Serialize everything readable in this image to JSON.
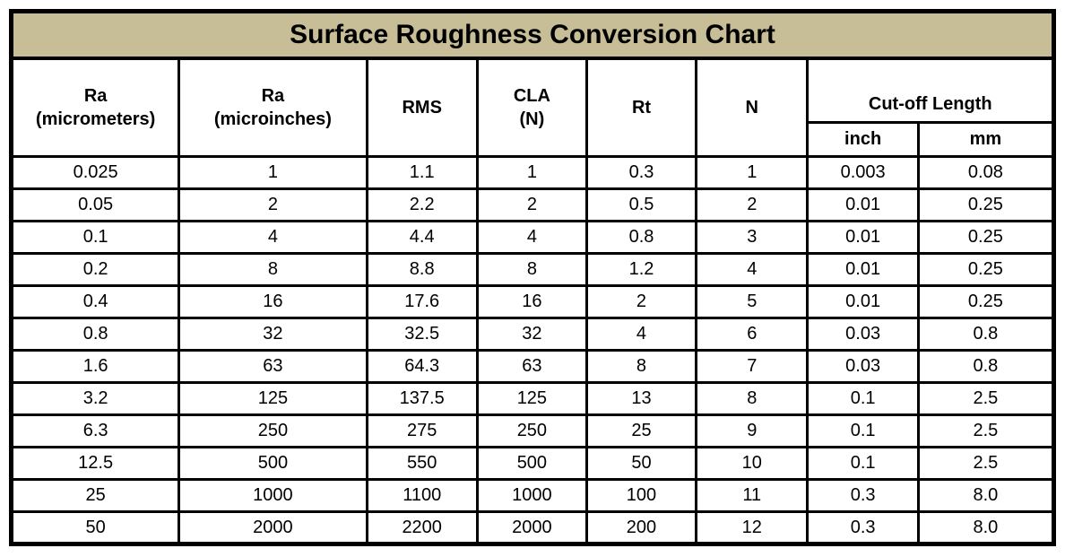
{
  "title": "Surface Roughness Conversion Chart",
  "colors": {
    "title_background": "#c7bd96",
    "border": "#000000",
    "cell_background": "#ffffff",
    "text": "#000000"
  },
  "header": {
    "columns": [
      {
        "id": "ra-micrometers",
        "line1": "Ra",
        "line2": "(micrometers)"
      },
      {
        "id": "ra-microinches",
        "line1": "Ra",
        "line2": "(microinches)"
      },
      {
        "id": "rms",
        "line1": "RMS",
        "line2": ""
      },
      {
        "id": "cla-n",
        "line1": "CLA",
        "line2": "(N)"
      },
      {
        "id": "rt",
        "line1": "Rt",
        "line2": ""
      },
      {
        "id": "n",
        "line1": "N",
        "line2": ""
      }
    ],
    "cutoff_group": {
      "label": "Cut-off Length",
      "sub_columns": [
        "inch",
        "mm"
      ]
    }
  },
  "chart_data": {
    "type": "table",
    "title": "Surface Roughness Conversion Chart",
    "columns": [
      "Ra (micrometers)",
      "Ra (microinches)",
      "RMS",
      "CLA (N)",
      "Rt",
      "N",
      "Cut-off Length (inch)",
      "Cut-off Length (mm)"
    ],
    "rows": [
      [
        "0.025",
        "1",
        "1.1",
        "1",
        "0.3",
        "1",
        "0.003",
        "0.08"
      ],
      [
        "0.05",
        "2",
        "2.2",
        "2",
        "0.5",
        "2",
        "0.01",
        "0.25"
      ],
      [
        "0.1",
        "4",
        "4.4",
        "4",
        "0.8",
        "3",
        "0.01",
        "0.25"
      ],
      [
        "0.2",
        "8",
        "8.8",
        "8",
        "1.2",
        "4",
        "0.01",
        "0.25"
      ],
      [
        "0.4",
        "16",
        "17.6",
        "16",
        "2",
        "5",
        "0.01",
        "0.25"
      ],
      [
        "0.8",
        "32",
        "32.5",
        "32",
        "4",
        "6",
        "0.03",
        "0.8"
      ],
      [
        "1.6",
        "63",
        "64.3",
        "63",
        "8",
        "7",
        "0.03",
        "0.8"
      ],
      [
        "3.2",
        "125",
        "137.5",
        "125",
        "13",
        "8",
        "0.1",
        "2.5"
      ],
      [
        "6.3",
        "250",
        "275",
        "250",
        "25",
        "9",
        "0.1",
        "2.5"
      ],
      [
        "12.5",
        "500",
        "550",
        "500",
        "50",
        "10",
        "0.1",
        "2.5"
      ],
      [
        "25",
        "1000",
        "1100",
        "1000",
        "100",
        "11",
        "0.3",
        "8.0"
      ],
      [
        "50",
        "2000",
        "2200",
        "2000",
        "200",
        "12",
        "0.3",
        "8.0"
      ]
    ]
  }
}
